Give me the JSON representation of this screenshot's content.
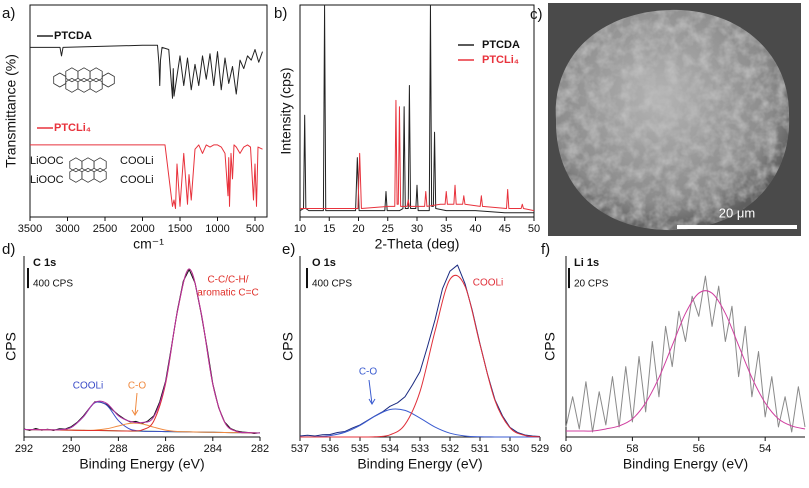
{
  "chart_data": [
    {
      "type": "line",
      "panel": "a)",
      "xlabel": "cm⁻¹",
      "ylabel": "Transmittance (%)",
      "xlim": [
        3500,
        340
      ],
      "xticks": [
        3500,
        3000,
        2500,
        2000,
        1500,
        1000,
        500
      ],
      "ylim": [
        0,
        100
      ],
      "structure_labels": [
        "LiOOC",
        "LiOOC",
        "COOLi",
        "COOLi"
      ],
      "series": [
        {
          "name": "PTCDA",
          "color": "#222222",
          "x": [
            3500,
            3100,
            3080,
            3060,
            2000,
            1800,
            1780,
            1770,
            1760,
            1740,
            1650,
            1600,
            1590,
            1580,
            1500,
            1450,
            1400,
            1350,
            1300,
            1250,
            1200,
            1150,
            1100,
            1050,
            1000,
            950,
            900,
            850,
            800,
            750,
            700,
            650,
            600,
            550,
            500,
            450,
            400
          ],
          "values": [
            80,
            80,
            76,
            80,
            81,
            81,
            72,
            62,
            74,
            80,
            79,
            56,
            70,
            57,
            76,
            62,
            75,
            60,
            72,
            62,
            76,
            65,
            77,
            62,
            78,
            60,
            75,
            63,
            71,
            58,
            74,
            70,
            76,
            74,
            79,
            73,
            78
          ]
        },
        {
          "name": "PTCLi₄",
          "color": "#e8323c",
          "x": [
            3500,
            1700,
            1600,
            1580,
            1560,
            1540,
            1500,
            1450,
            1400,
            1380,
            1350,
            1300,
            1250,
            1200,
            1150,
            1100,
            1050,
            1000,
            950,
            900,
            860,
            850,
            840,
            820,
            800,
            780,
            750,
            700,
            650,
            600,
            560,
            520,
            500,
            480,
            460,
            400
          ],
          "values": [
            34,
            34,
            5,
            8,
            4,
            25,
            5,
            30,
            6,
            20,
            8,
            32,
            34,
            30,
            34,
            33,
            34,
            34,
            33,
            30,
            10,
            28,
            5,
            30,
            18,
            34,
            33,
            30,
            33,
            34,
            33,
            8,
            25,
            5,
            33,
            32
          ]
        }
      ]
    },
    {
      "type": "line",
      "panel": "b)",
      "xlabel": "2-Theta (deg)",
      "ylabel": "Intensity (cps)",
      "xlim": [
        10,
        50
      ],
      "xticks": [
        10,
        15,
        20,
        25,
        30,
        35,
        40,
        45,
        50
      ],
      "ylim": [
        0,
        100
      ],
      "series": [
        {
          "name": "PTCDA",
          "color": "#222222",
          "x": [
            10,
            10.6,
            10.8,
            11.0,
            11.5,
            14.0,
            14.2,
            14.4,
            15,
            19.5,
            19.8,
            20.1,
            22,
            24.5,
            24.7,
            24.9,
            27,
            27.6,
            27.8,
            28.0,
            28.5,
            28.7,
            28.9,
            29.8,
            30.0,
            30.2,
            32.1,
            32.3,
            32.5,
            32.8,
            33.0,
            33.2,
            35,
            40,
            45,
            50
          ],
          "values": [
            3,
            4,
            48,
            4,
            3,
            3,
            100,
            3,
            3,
            3,
            28,
            3,
            3,
            3,
            12,
            3,
            3,
            4,
            52,
            4,
            4,
            62,
            4,
            4,
            15,
            3,
            3,
            100,
            5,
            5,
            40,
            4,
            3,
            3,
            2,
            2
          ]
        },
        {
          "name": "PTCLi₄",
          "color": "#e8323c",
          "x": [
            10,
            19.9,
            20.2,
            20.5,
            25,
            26.2,
            26.4,
            26.6,
            26.8,
            27.0,
            27.2,
            28.3,
            28.5,
            28.7,
            31.3,
            31.5,
            31.7,
            34,
            34.8,
            35,
            35.2,
            36.3,
            36.5,
            36.7,
            37.8,
            38,
            38.2,
            40.8,
            41,
            41.2,
            45.3,
            45.5,
            45.7,
            47.8,
            48,
            48.2,
            50
          ],
          "values": [
            4,
            4,
            30,
            4,
            5,
            5,
            55,
            6,
            6,
            52,
            5,
            5,
            8,
            5,
            5,
            12,
            5,
            6,
            6,
            12,
            6,
            6,
            15,
            6,
            6,
            10,
            6,
            5,
            10,
            5,
            4,
            13,
            4,
            4,
            6,
            4,
            3
          ]
        }
      ]
    },
    {
      "type": "line",
      "panel": "d)",
      "title": "C 1s",
      "xlabel": "Binding Energy (eV)",
      "ylabel": "CPS",
      "xlim": [
        292,
        282
      ],
      "xticks": [
        292,
        290,
        288,
        286,
        284,
        282
      ],
      "ylim": [
        0,
        3600
      ],
      "scale_bar": {
        "value": 400,
        "label": "400 CPS"
      },
      "annotations": [
        {
          "text": "COOLi",
          "color": "#3a4bc8"
        },
        {
          "text": "C-O",
          "color": "#f08a40"
        },
        {
          "text": "C-C/C-H/",
          "color": "#e0302a"
        },
        {
          "text": "aromatic C=C",
          "color": "#e0302a"
        }
      ],
      "series": [
        {
          "color": "#111111",
          "x": [
            292,
            291.75,
            291.5,
            291.25,
            291,
            290.75,
            290.5,
            290.25,
            290,
            289.75,
            289.5,
            289.25,
            289,
            288.75,
            288.5,
            288.25,
            288,
            287.75,
            287.5,
            287.25,
            287,
            286.75,
            286.5,
            286.25,
            286,
            285.75,
            285.5,
            285.25,
            285,
            284.75,
            284.5,
            284.25,
            284,
            283.75,
            283.5,
            283.25,
            283,
            282.75,
            282.5,
            282.25,
            282
          ],
          "values": [
            160,
            130,
            170,
            135,
            155,
            130,
            165,
            160,
            205,
            290,
            410,
            560,
            700,
            690,
            650,
            540,
            440,
            360,
            300,
            310,
            270,
            320,
            420,
            700,
            1110,
            1800,
            2520,
            3100,
            3330,
            3060,
            2470,
            1800,
            1060,
            580,
            300,
            170,
            120,
            100,
            90,
            70,
            85
          ]
        },
        {
          "color": "#40b040",
          "x": [
            292,
            291.5,
            291,
            290.5,
            290,
            289.5,
            289,
            288.5,
            288,
            287.5,
            287,
            286.5,
            286,
            285.5,
            285,
            284.5,
            284,
            283.5,
            283,
            282.5,
            282
          ],
          "values": [
            150,
            146,
            143,
            140,
            136,
            132,
            129,
            126,
            122,
            118,
            115,
            112,
            108,
            104,
            101,
            98,
            94,
            90,
            87,
            84,
            80
          ]
        },
        {
          "color": "#3a4bc8",
          "x": [
            292,
            291.5,
            291,
            290.5,
            290,
            289.5,
            289,
            288.5,
            288,
            287.5,
            287,
            286.5,
            286,
            285.5,
            285,
            284.5,
            284,
            283.5,
            283,
            282.5,
            282
          ],
          "values": [
            150,
            146,
            143,
            145,
            191,
            394,
            681,
            634,
            327,
            154,
            118,
            112,
            108,
            104,
            101,
            98,
            94,
            90,
            87,
            84,
            80
          ]
        },
        {
          "color": "#f08a40",
          "x": [
            292,
            291.5,
            291,
            290.5,
            290,
            289.5,
            289,
            288.5,
            288,
            287.5,
            287,
            286.5,
            286,
            285.5,
            285,
            284.5,
            284,
            283.5,
            283,
            282.5,
            282
          ],
          "values": [
            150,
            146,
            143,
            140,
            136,
            133,
            137,
            163,
            219,
            272,
            261,
            195,
            137,
            110,
            102,
            98,
            94,
            90,
            87,
            84,
            80
          ]
        },
        {
          "color": "#e0302a",
          "x": [
            292,
            291.5,
            291,
            290.5,
            290,
            289.5,
            289,
            288.5,
            288,
            287.5,
            287,
            286.5,
            286,
            285.5,
            285,
            284.5,
            284,
            283.5,
            283,
            282.5,
            282
          ],
          "values": [
            150,
            146,
            143,
            140,
            136,
            132,
            129,
            126,
            122,
            120,
            140,
            319,
            1064,
            2492,
            3341,
            2486,
            1050,
            297,
            112,
            86,
            80
          ]
        },
        {
          "color": "#b030a0",
          "x": [
            292,
            291.5,
            291,
            290.5,
            290,
            289.5,
            289,
            288.5,
            288,
            287.5,
            287,
            286.5,
            286,
            285.5,
            285,
            284.5,
            284,
            283.5,
            283,
            282.5,
            282
          ],
          "values": [
            150,
            146,
            143,
            145,
            191,
            395,
            689,
            671,
            424,
            310,
            289,
            402,
            1093,
            2498,
            3342,
            2486,
            1050,
            297,
            112,
            86,
            80
          ]
        }
      ]
    },
    {
      "type": "line",
      "panel": "e)",
      "title": "O 1s",
      "xlabel": "Binding Energy (eV)",
      "ylabel": "CPS",
      "xlim": [
        537,
        529
      ],
      "xticks": [
        537,
        536,
        535,
        534,
        533,
        532,
        531,
        530,
        529
      ],
      "ylim": [
        0,
        3600
      ],
      "scale_bar": {
        "value": 400,
        "label": "400 CPS"
      },
      "annotations": [
        {
          "text": "C-O",
          "color": "#3a5bd0"
        },
        {
          "text": "COOLi",
          "color": "#e0303a"
        }
      ],
      "series": [
        {
          "color": "#1a2a80",
          "x": [
            537,
            536.75,
            536.5,
            536.25,
            536,
            535.75,
            535.5,
            535.25,
            535,
            534.75,
            534.5,
            534.25,
            534,
            533.75,
            533.5,
            533.25,
            533,
            532.75,
            532.5,
            532.25,
            532,
            531.75,
            531.5,
            531.25,
            531,
            530.75,
            530.5,
            530.25,
            530,
            529.75,
            529.5,
            529.25,
            529
          ],
          "values": [
            20,
            35,
            20,
            45,
            50,
            90,
            110,
            180,
            240,
            330,
            420,
            500,
            610,
            680,
            800,
            1040,
            1300,
            1800,
            2330,
            2950,
            3300,
            3420,
            3050,
            2500,
            1850,
            1250,
            740,
            420,
            190,
            90,
            40,
            20,
            10
          ]
        },
        {
          "color": "#3a5bd0",
          "x": [
            537,
            536.5,
            536,
            535.5,
            535,
            534.5,
            534,
            533.5,
            533,
            532.5,
            532,
            531.5,
            531,
            530.5,
            530,
            529.5,
            529
          ],
          "values": [
            1,
            6,
            28,
            94,
            230,
            414,
            547,
            530,
            377,
            198,
            76,
            21,
            4,
            1,
            0,
            0,
            0
          ]
        },
        {
          "color": "#e0303a",
          "x": [
            537,
            536.5,
            536,
            535.5,
            535,
            534.5,
            534,
            533.5,
            533,
            532.5,
            532,
            531.5,
            531,
            530.5,
            530,
            529.5,
            529
          ],
          "values": [
            0,
            0,
            0,
            0,
            0,
            5,
            44,
            250,
            904,
            2103,
            3136,
            3000,
            1840,
            725,
            182,
            30,
            3
          ]
        }
      ]
    },
    {
      "type": "line",
      "panel": "f)",
      "title": "Li 1s",
      "xlabel": "Binding Energy (eV)",
      "ylabel": "CPS",
      "xlim": [
        60,
        52.8
      ],
      "xticks": [
        60,
        58,
        56,
        54
      ],
      "ylim": [
        0,
        180
      ],
      "scale_bar": {
        "value": 20,
        "label": "20 CPS"
      },
      "series": [
        {
          "color": "#8a8a8a",
          "x": [
            60,
            59.8,
            59.6,
            59.4,
            59.2,
            59,
            58.8,
            58.6,
            58.4,
            58.2,
            58,
            57.8,
            57.6,
            57.4,
            57.2,
            57,
            56.8,
            56.6,
            56.4,
            56.2,
            56,
            55.8,
            55.6,
            55.4,
            55.2,
            55,
            54.8,
            54.6,
            54.4,
            54.2,
            54,
            53.8,
            53.6,
            53.4,
            53.2,
            53,
            52.8
          ],
          "values": [
            10,
            40,
            8,
            55,
            5,
            45,
            12,
            60,
            10,
            70,
            15,
            80,
            25,
            95,
            40,
            110,
            70,
            125,
            95,
            140,
            120,
            160,
            110,
            150,
            95,
            130,
            60,
            110,
            40,
            85,
            20,
            60,
            10,
            40,
            5,
            50,
            10
          ]
        },
        {
          "color": "#d040a0",
          "x": [
            60,
            59.6,
            59.2,
            58.8,
            58.4,
            58,
            57.6,
            57.2,
            56.8,
            56.4,
            56,
            55.6,
            55.2,
            54.8,
            54.4,
            54,
            53.6,
            53.2,
            52.8
          ],
          "values": [
            6,
            6,
            6,
            8,
            11,
            18,
            34,
            59,
            91,
            123,
            143,
            143,
            123,
            91,
            59,
            34,
            18,
            11,
            8
          ]
        }
      ]
    }
  ],
  "image": {
    "panel": "c)",
    "scale_bar": "20 μm"
  }
}
